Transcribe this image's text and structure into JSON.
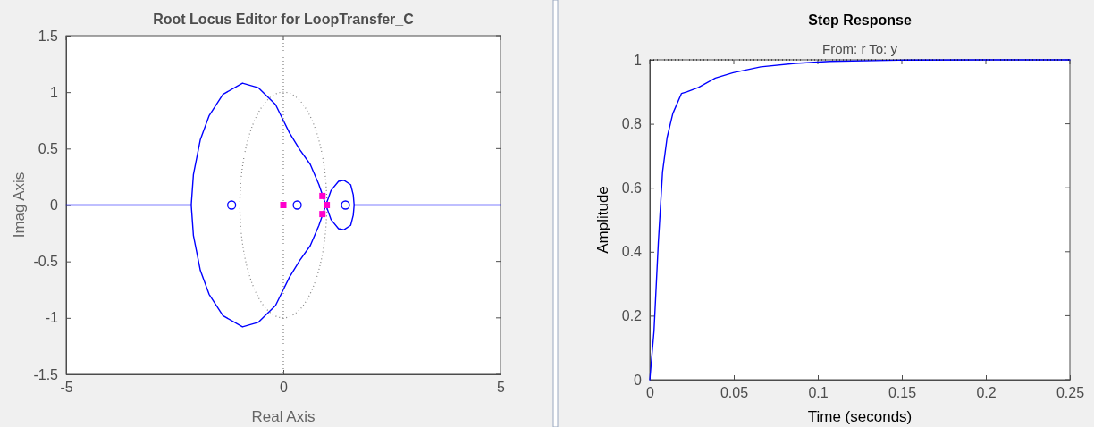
{
  "chart_data": [
    {
      "type": "line",
      "title": "Root Locus Editor for LoopTransfer_C",
      "xlabel": "Real Axis",
      "ylabel": "Imag Axis",
      "xlim": [
        -5,
        5
      ],
      "ylim": [
        -1.5,
        1.5
      ],
      "xticks": [
        -5,
        0,
        5
      ],
      "yticks": [
        -1.5,
        -1,
        -0.5,
        0,
        0.5,
        1,
        1.5
      ],
      "ref_lines": [
        {
          "axis": "x",
          "value": 0,
          "color": "#808080",
          "line_style": "dotted"
        },
        {
          "axis": "y",
          "value": 0,
          "color": "#808080",
          "line_style": "dotted"
        }
      ],
      "series": [
        {
          "color": "#0000ff",
          "line_style": "solid",
          "x": [
            -5,
            -2.12,
            -2.07,
            -1.91,
            -1.71,
            -1.39,
            -0.94,
            -0.58,
            -0.18,
            0.14,
            0.38,
            0.62,
            0.82,
            0.98,
            1.1,
            1.27,
            1.39,
            1.55,
            1.61,
            1.63,
            5
          ],
          "values": [
            0,
            0,
            0.27,
            0.58,
            0.79,
            0.98,
            1.08,
            1.04,
            0.89,
            0.64,
            0.49,
            0.36,
            0.18,
            0,
            0.13,
            0.21,
            0.22,
            0.18,
            0.09,
            0,
            0
          ]
        },
        {
          "color": "#0000ff",
          "line_style": "solid",
          "x": [
            -2.12,
            -2.07,
            -1.91,
            -1.71,
            -1.39,
            -0.94,
            -0.58,
            -0.18,
            0.14,
            0.38,
            0.62,
            0.82,
            0.98,
            1.1,
            1.27,
            1.39,
            1.55,
            1.61,
            1.63
          ],
          "values": [
            0,
            -0.27,
            -0.58,
            -0.79,
            -0.98,
            -1.08,
            -1.04,
            -0.89,
            -0.64,
            -0.49,
            -0.36,
            -0.18,
            0,
            -0.13,
            -0.21,
            -0.22,
            -0.18,
            -0.09,
            0
          ]
        },
        {
          "type": "scatter",
          "color": "#0000ff",
          "marker": "circle",
          "x": [
            -1.19,
            0.32,
            1.43
          ],
          "values": [
            0,
            0,
            0
          ]
        },
        {
          "type": "scatter",
          "color": "#ff00cc",
          "marker": "square",
          "x": [
            0,
            0.9,
            0.9,
            1.0
          ],
          "values": [
            0,
            0.08,
            -0.08,
            0
          ]
        }
      ]
    },
    {
      "type": "line",
      "title": "Step Response",
      "subtitle": "From: r  To: y",
      "xlabel": "Time (seconds)",
      "ylabel": "Amplitude",
      "xlim": [
        0,
        0.25
      ],
      "ylim": [
        0,
        1
      ],
      "xticks": [
        0,
        0.05,
        0.1,
        0.15,
        0.2,
        0.25
      ],
      "yticks": [
        0,
        0.2,
        0.4,
        0.6,
        0.8,
        1
      ],
      "ref_lines": [
        {
          "axis": "y",
          "value": 1,
          "color": "#000000",
          "line_style": "dotted"
        }
      ],
      "series": [
        {
          "color": "#0000ff",
          "line_style": "solid",
          "x": [
            0,
            0.0025,
            0.0051,
            0.0076,
            0.0103,
            0.0137,
            0.0189,
            0.022,
            0.029,
            0.039,
            0.0496,
            0.066,
            0.0865,
            0.107,
            0.148,
            0.2,
            0.25
          ],
          "values": [
            0,
            0.151,
            0.43,
            0.65,
            0.757,
            0.832,
            0.895,
            0.9,
            0.914,
            0.943,
            0.96,
            0.978,
            0.989,
            0.995,
            0.999,
            1,
            1
          ]
        }
      ]
    }
  ]
}
